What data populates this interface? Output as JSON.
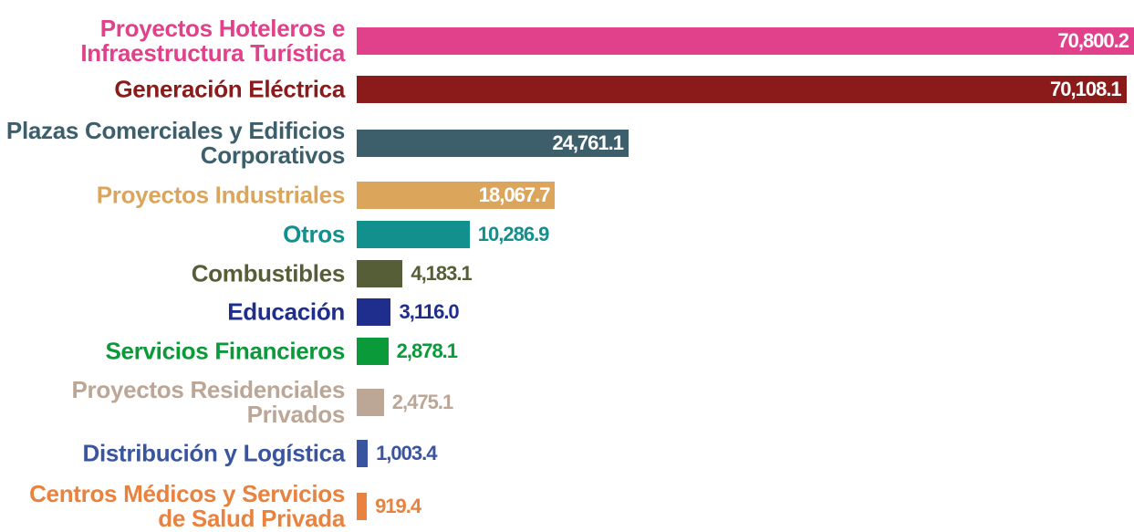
{
  "chart_data": {
    "type": "bar",
    "orientation": "horizontal",
    "categories": [
      "Proyectos Hoteleros e Infraestructura Turística",
      "Generación Eléctrica",
      "Plazas Comerciales y Edificios Corporativos",
      "Proyectos Industriales",
      "Otros",
      "Combustibles",
      "Educación",
      "Servicios Financieros",
      "Proyectos Residenciales Privados",
      "Distribución y Logística",
      "Centros Médicos y Servicios de Salud Privada"
    ],
    "values": [
      70800.2,
      70108.1,
      24761.1,
      18067.7,
      10286.9,
      4183.1,
      3116.0,
      2878.1,
      2475.1,
      1003.4,
      919.4
    ],
    "value_labels": [
      "70,800.2",
      "70,108.1",
      "24,761.1",
      "18,067.7",
      "10,286.9",
      "4,183.1",
      "3,116.0",
      "2,878.1",
      "2,475.1",
      "1,003.4",
      "919.4"
    ],
    "colors": [
      "#e0418a",
      "#8b1a1a",
      "#3d5f6b",
      "#dba65c",
      "#12908e",
      "#555e37",
      "#1f2e8c",
      "#0a9a3a",
      "#bca696",
      "#3a55a0",
      "#e8823e"
    ]
  }
}
